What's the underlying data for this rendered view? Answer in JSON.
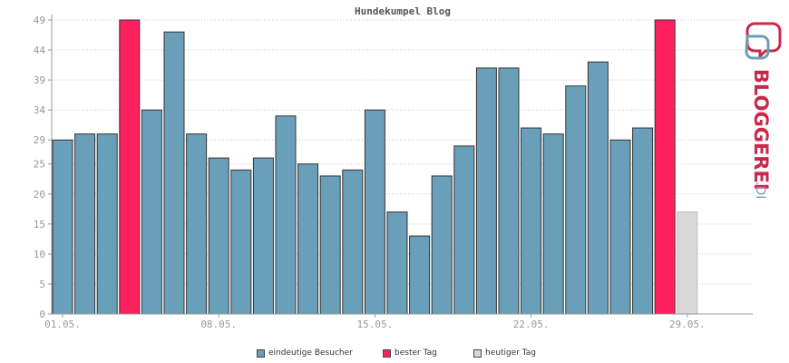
{
  "chart_data": {
    "type": "bar",
    "title": "Hundekumpel Blog",
    "xlabel": "",
    "ylabel": "",
    "ylim": [
      0,
      49
    ],
    "y_ticks": [
      "0",
      "5",
      "10",
      "15",
      "20",
      "25",
      "29",
      "34",
      "39",
      "44",
      "49"
    ],
    "x_tick_labels": [
      {
        "label": "01.05.",
        "day": 1
      },
      {
        "label": "08.05.",
        "day": 8
      },
      {
        "label": "15.05.",
        "day": 15
      },
      {
        "label": "22.05.",
        "day": 22
      },
      {
        "label": "29.05.",
        "day": 29
      }
    ],
    "grid": true,
    "legend_position": "bottom-center",
    "colors": {
      "normal": "#6a9fba",
      "best": "#ff2060",
      "today": "#d9d9d9",
      "axis": "#999999",
      "grid": "#c8c8c8",
      "tick_text": "#999999",
      "title_text": "#555555"
    },
    "days": [
      1,
      2,
      3,
      4,
      5,
      6,
      7,
      8,
      9,
      10,
      11,
      12,
      13,
      14,
      15,
      16,
      17,
      18,
      19,
      20,
      21,
      22,
      23,
      24,
      25,
      26,
      27,
      28,
      29,
      30,
      31
    ],
    "values": [
      29,
      30,
      30,
      49,
      34,
      47,
      30,
      26,
      24,
      26,
      33,
      25,
      23,
      24,
      34,
      17,
      13,
      23,
      28,
      41,
      41,
      31,
      30,
      38,
      42,
      29,
      31,
      49,
      17,
      null,
      null
    ],
    "highlight": [
      "normal",
      "normal",
      "normal",
      "best",
      "normal",
      "normal",
      "normal",
      "normal",
      "normal",
      "normal",
      "normal",
      "normal",
      "normal",
      "normal",
      "normal",
      "normal",
      "normal",
      "normal",
      "normal",
      "normal",
      "normal",
      "normal",
      "normal",
      "normal",
      "normal",
      "normal",
      "normal",
      "best",
      "today",
      "none",
      "none"
    ],
    "series": [
      {
        "name": "eindeutige Besucher",
        "key": "normal"
      },
      {
        "name": "bester Tag",
        "key": "best"
      },
      {
        "name": "heutiger Tag",
        "key": "today"
      }
    ]
  },
  "logo": {
    "text_main": "BLOGGEREI",
    "text_suffix": ".DE",
    "color_main": "#c8284b",
    "color_suffix": "#6a9fba",
    "icon": "speech-bubbles-icon"
  }
}
